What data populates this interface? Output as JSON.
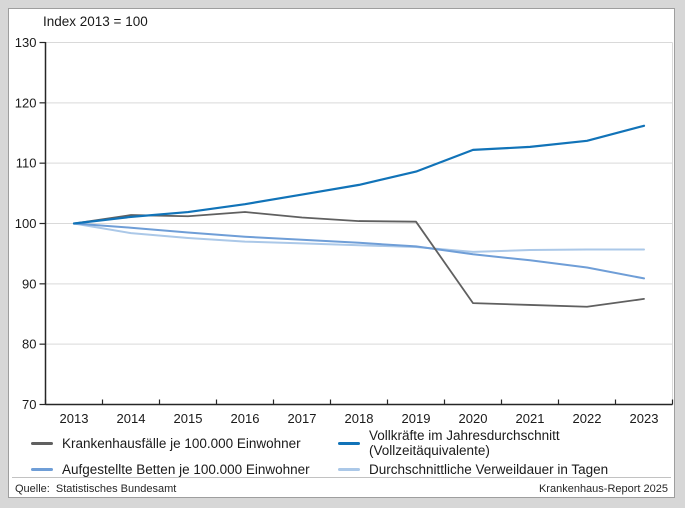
{
  "header": {
    "title": "Index 2013 = 100"
  },
  "chart_data": {
    "type": "line",
    "title": "Index 2013 = 100",
    "x": [
      "2013",
      "2014",
      "2015",
      "2016",
      "2017",
      "2018",
      "2019",
      "2020",
      "2021",
      "2022",
      "2023"
    ],
    "xlabel": "",
    "ylabel": "Index 2013 = 100",
    "ylim": [
      70,
      130
    ],
    "yticks": [
      70,
      80,
      90,
      100,
      110,
      120,
      130
    ],
    "grid": "horizontal",
    "legend_position": "bottom",
    "series": [
      {
        "name": "Krankenhausfälle je 100.000 Einwohner",
        "color": "#606060",
        "width": 1.8,
        "values": [
          100,
          101.4,
          101.2,
          101.9,
          101.0,
          100.4,
          100.3,
          86.8,
          86.5,
          86.2,
          87.5
        ]
      },
      {
        "name": "Aufgestellte Betten je 100.000 Einwohner",
        "color": "#6f9ed7",
        "width": 2,
        "values": [
          100,
          99.3,
          98.5,
          97.8,
          97.3,
          96.8,
          96.2,
          94.9,
          93.9,
          92.7,
          90.9
        ]
      },
      {
        "name": "Vollkräfte im Jahresdurchschnitt (Vollzeitäquivalente)",
        "color": "#1173b8",
        "width": 2.2,
        "values": [
          100,
          101.1,
          101.9,
          103.2,
          104.8,
          106.4,
          108.6,
          112.2,
          112.7,
          113.7,
          116.2
        ]
      },
      {
        "name": "Durchschnittliche Verweildauer in Tagen",
        "color": "#abc8e8",
        "width": 2,
        "values": [
          100,
          98.4,
          97.6,
          97.0,
          96.7,
          96.4,
          96.1,
          95.3,
          95.6,
          95.7,
          95.7
        ]
      }
    ],
    "draw_order": [
      3,
      1,
      0,
      2
    ]
  },
  "legend": {
    "columns": [
      [
        0,
        1
      ],
      [
        2,
        3
      ]
    ]
  },
  "footer": {
    "source_label": "Quelle:",
    "source_text": "Statistisches Bundesamt",
    "report_text": "Krankenhaus-Report 2025"
  }
}
